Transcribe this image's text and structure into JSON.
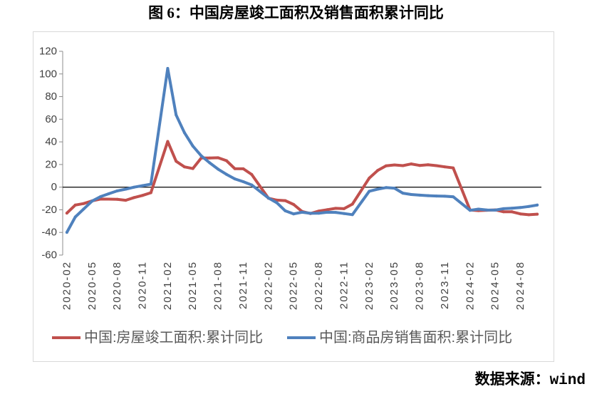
{
  "chart_data": {
    "type": "line",
    "title": "图 6：中国房屋竣工面积及销售面积累计同比",
    "source": "数据来源：wind",
    "x": [
      "2020-02",
      "2020-03",
      "2020-04",
      "2020-05",
      "2020-06",
      "2020-07",
      "2020-08",
      "2020-09",
      "2020-10",
      "2020-11",
      "2020-12",
      "2021-02",
      "2021-03",
      "2021-04",
      "2021-05",
      "2021-06",
      "2021-07",
      "2021-08",
      "2021-09",
      "2021-10",
      "2021-11",
      "2021-12",
      "2022-02",
      "2022-03",
      "2022-04",
      "2022-05",
      "2022-06",
      "2022-07",
      "2022-08",
      "2022-09",
      "2022-10",
      "2022-11",
      "2022-12",
      "2023-02",
      "2023-03",
      "2023-04",
      "2023-05",
      "2023-06",
      "2023-07",
      "2023-08",
      "2023-09",
      "2023-10",
      "2023-11",
      "2023-12",
      "2024-02",
      "2024-03",
      "2024-04",
      "2024-05",
      "2024-06",
      "2024-07",
      "2024-08",
      "2024-09",
      "2024-10"
    ],
    "xlim": [
      "2020-02",
      "2024-10"
    ],
    "xticks": [
      "2020-02",
      "2020-05",
      "2020-08",
      "2020-11",
      "2021-02",
      "2021-05",
      "2021-08",
      "2021-11",
      "2022-02",
      "2022-05",
      "2022-08",
      "2022-11",
      "2023-02",
      "2023-05",
      "2023-08",
      "2023-11",
      "2024-02",
      "2024-05",
      "2024-08"
    ],
    "ylim": [
      -60,
      120
    ],
    "yticks": [
      120,
      100,
      80,
      60,
      40,
      20,
      0,
      -20,
      -40,
      -60
    ],
    "grid": false,
    "legend": "bottom",
    "series": [
      {
        "name": "中国:房屋竣工面积:累计同比",
        "color": "#C0504D",
        "values": [
          -22.9,
          -15.8,
          -14.5,
          -12.1,
          -10.5,
          -10.6,
          -10.8,
          -11.6,
          -9.2,
          -7.3,
          -4.9,
          40.4,
          22.9,
          17.9,
          16.4,
          25.7,
          25.7,
          26.0,
          23.4,
          16.3,
          16.2,
          11.2,
          -9.8,
          -11.5,
          -11.9,
          -15.3,
          -21.5,
          -23.3,
          -21.1,
          -19.9,
          -18.7,
          -19.0,
          -15.0,
          8.0,
          14.7,
          18.8,
          19.6,
          19.0,
          20.5,
          19.2,
          19.8,
          19.0,
          17.9,
          17.0,
          -20.2,
          -20.7,
          -20.4,
          -20.1,
          -21.8,
          -21.8,
          -23.6,
          -24.4,
          -23.9
        ]
      },
      {
        "name": "中国:商品房销售面积:累计同比",
        "color": "#4F81BD",
        "values": [
          -39.9,
          -26.3,
          -19.3,
          -12.3,
          -8.4,
          -5.8,
          -3.3,
          -1.8,
          0.0,
          1.3,
          2.6,
          104.9,
          63.8,
          48.1,
          36.3,
          27.7,
          21.5,
          15.9,
          11.3,
          7.3,
          4.8,
          1.9,
          -9.6,
          -13.8,
          -20.9,
          -23.6,
          -22.2,
          -23.1,
          -23.0,
          -22.2,
          -22.3,
          -23.3,
          -24.3,
          -3.6,
          -1.8,
          -0.4,
          -0.9,
          -5.3,
          -6.5,
          -7.1,
          -7.5,
          -7.8,
          -8.0,
          -8.5,
          -20.5,
          -19.4,
          -20.2,
          -20.3,
          -19.0,
          -18.6,
          -18.0,
          -17.1,
          -15.8
        ]
      }
    ]
  }
}
